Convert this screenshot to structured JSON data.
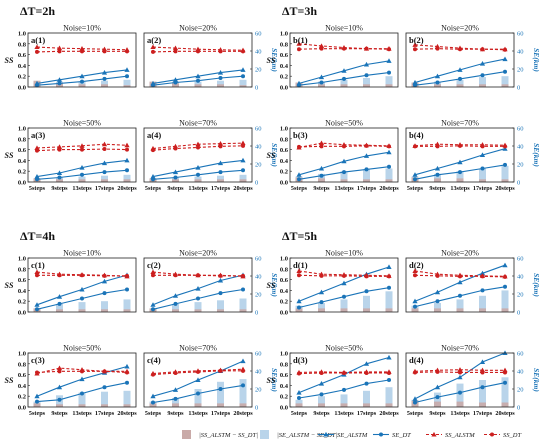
{
  "colors": {
    "dt": "#1a74b8",
    "lstm": "#1a74b8",
    "ss_dt": "#cc1f1f",
    "ss_lstm": "#cc1f1f",
    "bar_light": "#b9d4ea",
    "bar_dark": "#c9aaa8"
  },
  "legend": {
    "items": [
      {
        "key": "bar_dark",
        "label": "|SS_ALSTM − SS_DT|"
      },
      {
        "key": "bar_light",
        "label": "|SE_ALSTM − SE_DT|"
      },
      {
        "key": "lstm",
        "label": "SE_ALSTM"
      },
      {
        "key": "dt",
        "label": "SE_DT"
      },
      {
        "key": "ss_lstm",
        "label": "SS_ALSTM"
      },
      {
        "key": "ss_dt",
        "label": "SS_DT"
      }
    ]
  },
  "chart_data": {
    "type": "line",
    "categories": [
      "5steps",
      "9steps",
      "13steps",
      "17steps",
      "20steps"
    ],
    "ylabel_left": "SS",
    "ylabel_right": "SE(km)",
    "ylim_left": [
      0,
      1.0
    ],
    "yticks_left": [
      "0.0",
      "0.2",
      "0.4",
      "0.6",
      "0.8",
      "1.0"
    ],
    "ylim_right": [
      0,
      60
    ],
    "yticks_right": [
      "0",
      "20",
      "40",
      "60"
    ],
    "groups": [
      {
        "title": "ΔT=2h",
        "panels": [
          {
            "id": "a(1)",
            "noise": "Noise=10%",
            "ss_lstm": [
              0.74,
              0.72,
              0.71,
              0.7,
              0.69
            ],
            "ss_dt": [
              0.65,
              0.66,
              0.66,
              0.66,
              0.66
            ],
            "se_lstm": [
              4,
              8,
              12,
              16,
              19
            ],
            "se_dt": [
              2,
              4,
              6,
              9,
              12
            ],
            "bar_se": [
              5,
              6,
              6,
              7,
              8
            ],
            "bar_ss": [
              7,
              4,
              3,
              3,
              2
            ]
          },
          {
            "id": "a(2)",
            "noise": "Noise=20%",
            "ss_lstm": [
              0.74,
              0.72,
              0.7,
              0.69,
              0.68
            ],
            "ss_dt": [
              0.65,
              0.66,
              0.66,
              0.66,
              0.66
            ],
            "se_lstm": [
              4,
              8,
              12,
              16,
              19
            ],
            "se_dt": [
              2,
              5,
              7,
              10,
              12
            ],
            "bar_se": [
              5,
              6,
              6,
              7,
              8
            ],
            "bar_ss": [
              6,
              4,
              3,
              3,
              2
            ]
          },
          {
            "id": "a(3)",
            "noise": "Noise=50%",
            "ss_lstm": [
              0.63,
              0.65,
              0.67,
              0.7,
              0.68
            ],
            "ss_dt": [
              0.58,
              0.6,
              0.6,
              0.61,
              0.6
            ],
            "se_lstm": [
              6,
              10,
              16,
              21,
              24
            ],
            "se_dt": [
              3,
              5,
              8,
              11,
              13
            ],
            "bar_se": [
              4,
              5,
              6,
              7,
              8
            ],
            "bar_ss": [
              4,
              3,
              3,
              3,
              3
            ]
          },
          {
            "id": "a(4)",
            "noise": "Noise=70%",
            "ss_lstm": [
              0.62,
              0.66,
              0.7,
              0.71,
              0.72
            ],
            "ss_dt": [
              0.59,
              0.62,
              0.64,
              0.66,
              0.67
            ],
            "se_lstm": [
              6,
              11,
              16,
              21,
              24
            ],
            "se_dt": [
              3,
              5,
              8,
              11,
              13
            ],
            "bar_se": [
              4,
              5,
              6,
              7,
              8
            ],
            "bar_ss": [
              4,
              3,
              3,
              3,
              3
            ]
          }
        ]
      },
      {
        "title": "ΔT=3h",
        "panels": [
          {
            "id": "b(1)",
            "noise": "Noise=10%",
            "ss_lstm": [
              0.8,
              0.76,
              0.73,
              0.71,
              0.71
            ],
            "ss_dt": [
              0.7,
              0.71,
              0.71,
              0.71,
              0.7
            ],
            "se_lstm": [
              4,
              11,
              18,
              25,
              29
            ],
            "se_dt": [
              2,
              5,
              9,
              13,
              16
            ],
            "bar_se": [
              3,
              6,
              8,
              10,
              12
            ],
            "bar_ss": [
              5,
              3,
              3,
              3,
              3
            ]
          },
          {
            "id": "b(2)",
            "noise": "Noise=20%",
            "ss_lstm": [
              0.78,
              0.75,
              0.72,
              0.7,
              0.7
            ],
            "ss_dt": [
              0.7,
              0.71,
              0.7,
              0.7,
              0.69
            ],
            "se_lstm": [
              5,
              12,
              19,
              26,
              31
            ],
            "se_dt": [
              2,
              5,
              9,
              13,
              17
            ],
            "bar_se": [
              3,
              6,
              8,
              11,
              12
            ],
            "bar_ss": [
              5,
              3,
              3,
              3,
              3
            ]
          },
          {
            "id": "b(3)",
            "noise": "Noise=50%",
            "ss_lstm": [
              0.64,
              0.72,
              0.69,
              0.68,
              0.67
            ],
            "ss_dt": [
              0.65,
              0.66,
              0.66,
              0.67,
              0.66
            ],
            "se_lstm": [
              8,
              15,
              23,
              29,
              33
            ],
            "se_dt": [
              3,
              7,
              11,
              14,
              17
            ],
            "bar_se": [
              6,
              9,
              12,
              14,
              15
            ],
            "bar_ss": [
              5,
              4,
              3,
              3,
              3
            ]
          },
          {
            "id": "b(4)",
            "noise": "Noise=70%",
            "ss_lstm": [
              0.67,
              0.7,
              0.69,
              0.69,
              0.68
            ],
            "ss_dt": [
              0.66,
              0.66,
              0.67,
              0.66,
              0.66
            ],
            "se_lstm": [
              8,
              15,
              22,
              30,
              37
            ],
            "se_dt": [
              3,
              8,
              11,
              15,
              19
            ],
            "bar_se": [
              6,
              9,
              12,
              15,
              18
            ],
            "bar_ss": [
              5,
              4,
              4,
              3,
              3
            ]
          }
        ]
      },
      {
        "title": "ΔT=4h",
        "panels": [
          {
            "id": "c(1)",
            "noise": "Noise=10%",
            "ss_lstm": [
              0.74,
              0.7,
              0.69,
              0.68,
              0.66
            ],
            "ss_dt": [
              0.68,
              0.68,
              0.68,
              0.67,
              0.67
            ],
            "se_lstm": [
              8,
              17,
              25,
              34,
              41
            ],
            "se_dt": [
              3,
              9,
              15,
              21,
              25
            ],
            "bar_se": [
              4,
              9,
              11,
              12,
              14
            ],
            "bar_ss": [
              4,
              3,
              3,
              3,
              3
            ]
          },
          {
            "id": "c(2)",
            "noise": "Noise=20%",
            "ss_lstm": [
              0.74,
              0.7,
              0.68,
              0.68,
              0.66
            ],
            "ss_dt": [
              0.68,
              0.68,
              0.68,
              0.67,
              0.67
            ],
            "se_lstm": [
              8,
              18,
              26,
              35,
              41
            ],
            "se_dt": [
              3,
              9,
              15,
              21,
              25
            ],
            "bar_se": [
              4,
              9,
              11,
              13,
              15
            ],
            "bar_ss": [
              4,
              3,
              3,
              3,
              3
            ]
          },
          {
            "id": "c(3)",
            "noise": "Noise=50%",
            "ss_lstm": [
              0.62,
              0.72,
              0.69,
              0.66,
              0.66
            ],
            "ss_dt": [
              0.64,
              0.66,
              0.66,
              0.66,
              0.64
            ],
            "se_lstm": [
              12,
              22,
              31,
              38,
              45
            ],
            "se_dt": [
              6,
              8,
              15,
              22,
              27
            ],
            "bar_se": [
              6,
              13,
              16,
              17,
              18
            ],
            "bar_ss": [
              4,
              3,
              3,
              3,
              3
            ]
          },
          {
            "id": "c(4)",
            "noise": "Noise=70%",
            "ss_lstm": [
              0.62,
              0.65,
              0.67,
              0.68,
              0.7
            ],
            "ss_dt": [
              0.6,
              0.63,
              0.65,
              0.67,
              0.67
            ],
            "se_lstm": [
              12,
              19,
              30,
              40,
              51
            ],
            "se_dt": [
              5,
              9,
              15,
              20,
              24
            ],
            "bar_se": [
              6,
              10,
              20,
              28,
              31
            ],
            "bar_ss": [
              4,
              4,
              4,
              4,
              4
            ]
          }
        ]
      },
      {
        "title": "ΔT=5h",
        "panels": [
          {
            "id": "d(1)",
            "noise": "Noise=10%",
            "ss_lstm": [
              0.76,
              0.7,
              0.69,
              0.68,
              0.67
            ],
            "ss_dt": [
              0.68,
              0.67,
              0.67,
              0.66,
              0.66
            ],
            "se_lstm": [
              12,
              22,
              32,
              42,
              50
            ],
            "se_dt": [
              5,
              11,
              17,
              23,
              27
            ],
            "bar_se": [
              7,
              10,
              14,
              18,
              23
            ],
            "bar_ss": [
              4,
              4,
              4,
              4,
              4
            ]
          },
          {
            "id": "d(2)",
            "noise": "Noise=20%",
            "ss_lstm": [
              0.76,
              0.7,
              0.68,
              0.67,
              0.66
            ],
            "ss_dt": [
              0.68,
              0.67,
              0.66,
              0.66,
              0.65
            ],
            "se_lstm": [
              12,
              22,
              33,
              43,
              52
            ],
            "se_dt": [
              6,
              12,
              18,
              24,
              28
            ],
            "bar_se": [
              7,
              10,
              14,
              18,
              24
            ],
            "bar_ss": [
              4,
              4,
              4,
              4,
              4
            ]
          },
          {
            "id": "d(3)",
            "noise": "Noise=50%",
            "ss_lstm": [
              0.64,
              0.65,
              0.64,
              0.65,
              0.65
            ],
            "ss_dt": [
              0.62,
              0.63,
              0.63,
              0.63,
              0.63
            ],
            "se_lstm": [
              16,
              26,
              36,
              48,
              55
            ],
            "se_dt": [
              10,
              14,
              19,
              26,
              30
            ],
            "bar_se": [
              8,
              12,
              14,
              18,
              22
            ],
            "bar_ss": [
              4,
              4,
              4,
              4,
              4
            ]
          },
          {
            "id": "d(4)",
            "noise": "Noise=70%",
            "ss_lstm": [
              0.66,
              0.68,
              0.69,
              0.68,
              0.68
            ],
            "ss_dt": [
              0.64,
              0.65,
              0.64,
              0.64,
              0.64
            ],
            "se_lstm": [
              9,
              22,
              33,
              50,
              60
            ],
            "se_dt": [
              5,
              11,
              16,
              22,
              27
            ],
            "bar_se": [
              8,
              16,
              26,
              30,
              33
            ],
            "bar_ss": [
              7,
              6,
              6,
              5,
              5
            ]
          }
        ]
      }
    ]
  }
}
